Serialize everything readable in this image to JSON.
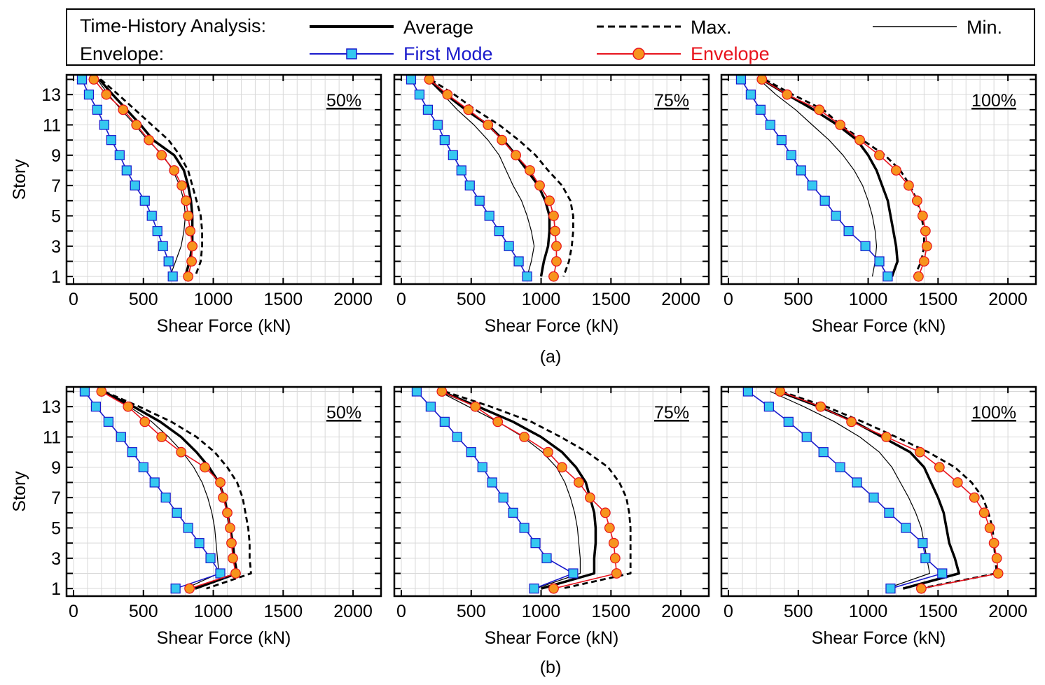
{
  "legend": {
    "group1_label": "Time-History Analysis:",
    "group2_label": "Envelope:",
    "items": [
      {
        "key": "average",
        "label": "Average",
        "color": "#000000",
        "style": "thick-solid"
      },
      {
        "key": "max",
        "label": "Max.",
        "color": "#000000",
        "style": "dashed"
      },
      {
        "key": "min",
        "label": "Min.",
        "color": "#000000",
        "style": "thin-solid"
      },
      {
        "key": "first_mode",
        "label": "First Mode",
        "color": "#1a1acc",
        "marker": "square",
        "marker_fill": "#35c8f0"
      },
      {
        "key": "envelope",
        "label": "Envelope",
        "color": "#e8141e",
        "marker": "circle",
        "marker_fill": "#f7941d"
      }
    ]
  },
  "row_labels": [
    "(a)",
    "(b)"
  ],
  "chart_data": [
    {
      "type": "line",
      "row": "(a)",
      "tag": "50%",
      "xlabel": "Shear Force (kN)",
      "ylabel": "Story",
      "xlim": [
        -50,
        2200
      ],
      "ylim": [
        0.5,
        14.3
      ],
      "xticks": [
        0,
        500,
        1000,
        1500,
        2000
      ],
      "yticks": [
        1,
        3,
        5,
        7,
        9,
        11,
        13
      ],
      "y": [
        14,
        13,
        12,
        11,
        10,
        9,
        8,
        7,
        6,
        5,
        4,
        3,
        2,
        1
      ],
      "series": [
        {
          "name": "Average",
          "values": [
            185,
            280,
            380,
            480,
            570,
            720,
            790,
            820,
            840,
            850,
            850,
            850,
            830,
            800
          ]
        },
        {
          "name": "Max.",
          "values": [
            195,
            320,
            440,
            560,
            680,
            760,
            820,
            850,
            880,
            910,
            920,
            920,
            910,
            870
          ]
        },
        {
          "name": "Min.",
          "values": [
            170,
            250,
            340,
            440,
            530,
            640,
            710,
            760,
            790,
            800,
            790,
            770,
            730,
            690
          ]
        },
        {
          "name": "First Mode",
          "values": [
            60,
            110,
            170,
            220,
            270,
            330,
            380,
            440,
            510,
            560,
            600,
            640,
            680,
            710
          ]
        },
        {
          "name": "Envelope",
          "values": [
            145,
            235,
            355,
            450,
            540,
            630,
            720,
            775,
            805,
            820,
            835,
            850,
            845,
            820
          ]
        }
      ]
    },
    {
      "type": "line",
      "row": "(a)",
      "tag": "75%",
      "xlabel": "Shear Force (kN)",
      "ylabel": "Story",
      "xlim": [
        -50,
        2200
      ],
      "ylim": [
        0.5,
        14.3
      ],
      "xticks": [
        0,
        500,
        1000,
        1500,
        2000
      ],
      "yticks": [
        1,
        3,
        5,
        7,
        9,
        11,
        13
      ],
      "y": [
        14,
        13,
        12,
        11,
        10,
        9,
        8,
        7,
        6,
        5,
        4,
        3,
        2,
        1
      ],
      "series": [
        {
          "name": "Average",
          "values": [
            200,
            320,
            460,
            620,
            730,
            820,
            900,
            980,
            1030,
            1060,
            1060,
            1050,
            1020,
            1000
          ]
        },
        {
          "name": "Max.",
          "values": [
            210,
            380,
            530,
            700,
            840,
            960,
            1050,
            1150,
            1210,
            1230,
            1230,
            1220,
            1200,
            1160
          ]
        },
        {
          "name": "Min.",
          "values": [
            190,
            300,
            400,
            520,
            620,
            700,
            750,
            800,
            860,
            900,
            930,
            950,
            930,
            900
          ]
        },
        {
          "name": "First Mode",
          "values": [
            70,
            130,
            190,
            260,
            310,
            370,
            430,
            490,
            560,
            630,
            700,
            770,
            840,
            900
          ]
        },
        {
          "name": "Envelope",
          "values": [
            200,
            330,
            480,
            620,
            720,
            820,
            920,
            990,
            1060,
            1090,
            1100,
            1110,
            1110,
            1090
          ]
        }
      ]
    },
    {
      "type": "line",
      "row": "(a)",
      "tag": "100%",
      "xlabel": "Shear Force (kN)",
      "ylabel": "Story",
      "xlim": [
        -50,
        2200
      ],
      "ylim": [
        0.5,
        14.3
      ],
      "xticks": [
        0,
        500,
        1000,
        1500,
        2000
      ],
      "yticks": [
        1,
        3,
        5,
        7,
        9,
        11,
        13
      ],
      "y": [
        14,
        13,
        12,
        11,
        10,
        9,
        8,
        7,
        6,
        5,
        4,
        3,
        2,
        1
      ],
      "series": [
        {
          "name": "Average",
          "values": [
            240,
            420,
            610,
            780,
            920,
            1000,
            1060,
            1100,
            1140,
            1160,
            1180,
            1200,
            1210,
            1170
          ]
        },
        {
          "name": "Max.",
          "values": [
            260,
            460,
            680,
            800,
            960,
            1120,
            1230,
            1300,
            1350,
            1380,
            1400,
            1400,
            1380,
            1330
          ]
        },
        {
          "name": "Min.",
          "values": [
            220,
            340,
            480,
            600,
            720,
            820,
            900,
            960,
            1000,
            1030,
            1050,
            1060,
            1050,
            1030
          ]
        },
        {
          "name": "First Mode",
          "values": [
            90,
            160,
            230,
            300,
            380,
            450,
            520,
            600,
            690,
            770,
            860,
            980,
            1080,
            1140
          ]
        },
        {
          "name": "Envelope",
          "values": [
            240,
            420,
            650,
            800,
            940,
            1080,
            1200,
            1290,
            1350,
            1390,
            1410,
            1420,
            1400,
            1360
          ]
        }
      ]
    },
    {
      "type": "line",
      "row": "(b)",
      "tag": "50%",
      "xlabel": "Shear Force (kN)",
      "ylabel": "Story",
      "xlim": [
        -50,
        2200
      ],
      "ylim": [
        0.5,
        14.3
      ],
      "xticks": [
        0,
        500,
        1000,
        1500,
        2000
      ],
      "yticks": [
        1,
        3,
        5,
        7,
        9,
        11,
        13
      ],
      "y": [
        14,
        13,
        12,
        11,
        10,
        9,
        8,
        7,
        6,
        5,
        4,
        3,
        2,
        1
      ],
      "series": [
        {
          "name": "Average",
          "values": [
            210,
            430,
            620,
            770,
            880,
            970,
            1040,
            1080,
            1100,
            1120,
            1140,
            1150,
            1170,
            870
          ]
        },
        {
          "name": "Max.",
          "values": [
            220,
            470,
            700,
            880,
            1010,
            1100,
            1170,
            1210,
            1230,
            1250,
            1260,
            1260,
            1270,
            950
          ]
        },
        {
          "name": "Min.",
          "values": [
            200,
            400,
            560,
            680,
            780,
            860,
            920,
            960,
            990,
            1010,
            1020,
            1030,
            1040,
            800
          ]
        },
        {
          "name": "First Mode",
          "values": [
            80,
            160,
            250,
            340,
            420,
            500,
            580,
            660,
            740,
            820,
            900,
            980,
            1050,
            730
          ]
        },
        {
          "name": "Envelope",
          "values": [
            200,
            390,
            510,
            630,
            770,
            940,
            1050,
            1070,
            1100,
            1120,
            1130,
            1140,
            1160,
            830
          ]
        }
      ]
    },
    {
      "type": "line",
      "row": "(b)",
      "tag": "75%",
      "xlabel": "Shear Force (kN)",
      "ylabel": "Story",
      "xlim": [
        -50,
        2200
      ],
      "ylim": [
        0.5,
        14.3
      ],
      "xticks": [
        0,
        500,
        1000,
        1500,
        2000
      ],
      "yticks": [
        1,
        3,
        5,
        7,
        9,
        11,
        13
      ],
      "y": [
        14,
        13,
        12,
        11,
        10,
        9,
        8,
        7,
        6,
        5,
        4,
        3,
        2,
        1
      ],
      "series": [
        {
          "name": "Average",
          "values": [
            290,
            550,
            800,
            1000,
            1150,
            1250,
            1320,
            1350,
            1380,
            1390,
            1390,
            1380,
            1380,
            1000
          ]
        },
        {
          "name": "Max.",
          "values": [
            310,
            640,
            930,
            1140,
            1330,
            1480,
            1560,
            1610,
            1630,
            1640,
            1640,
            1640,
            1640,
            1150
          ]
        },
        {
          "name": "Min.",
          "values": [
            270,
            480,
            690,
            870,
            1010,
            1110,
            1170,
            1210,
            1240,
            1260,
            1270,
            1280,
            1280,
            960
          ]
        },
        {
          "name": "First Mode",
          "values": [
            110,
            210,
            310,
            400,
            500,
            580,
            650,
            730,
            800,
            880,
            960,
            1040,
            1230,
            950
          ]
        },
        {
          "name": "Envelope",
          "values": [
            290,
            530,
            690,
            880,
            1050,
            1150,
            1270,
            1350,
            1460,
            1490,
            1520,
            1530,
            1540,
            1090
          ]
        }
      ]
    },
    {
      "type": "line",
      "row": "(b)",
      "tag": "100%",
      "xlabel": "Shear Force (kN)",
      "ylabel": "Story",
      "xlim": [
        -50,
        2200
      ],
      "ylim": [
        0.5,
        14.3
      ],
      "xticks": [
        0,
        500,
        1000,
        1500,
        2000
      ],
      "yticks": [
        1,
        3,
        5,
        7,
        9,
        11,
        13
      ],
      "y": [
        14,
        13,
        12,
        11,
        10,
        9,
        8,
        7,
        6,
        5,
        4,
        3,
        2,
        1
      ],
      "series": [
        {
          "name": "Average",
          "values": [
            360,
            650,
            900,
            1100,
            1300,
            1400,
            1450,
            1500,
            1540,
            1560,
            1580,
            1620,
            1650,
            1250
          ]
        },
        {
          "name": "Max.",
          "values": [
            380,
            700,
            960,
            1200,
            1430,
            1620,
            1740,
            1820,
            1860,
            1890,
            1900,
            1910,
            1920,
            1370
          ]
        },
        {
          "name": "Min.",
          "values": [
            300,
            540,
            760,
            940,
            1080,
            1170,
            1230,
            1290,
            1340,
            1380,
            1400,
            1420,
            1440,
            1130
          ]
        },
        {
          "name": "First Mode",
          "values": [
            140,
            290,
            430,
            560,
            680,
            800,
            920,
            1040,
            1150,
            1270,
            1390,
            1410,
            1530,
            1160
          ]
        },
        {
          "name": "Envelope",
          "values": [
            370,
            660,
            880,
            1130,
            1370,
            1510,
            1640,
            1760,
            1830,
            1870,
            1900,
            1920,
            1930,
            1380
          ]
        }
      ]
    }
  ]
}
